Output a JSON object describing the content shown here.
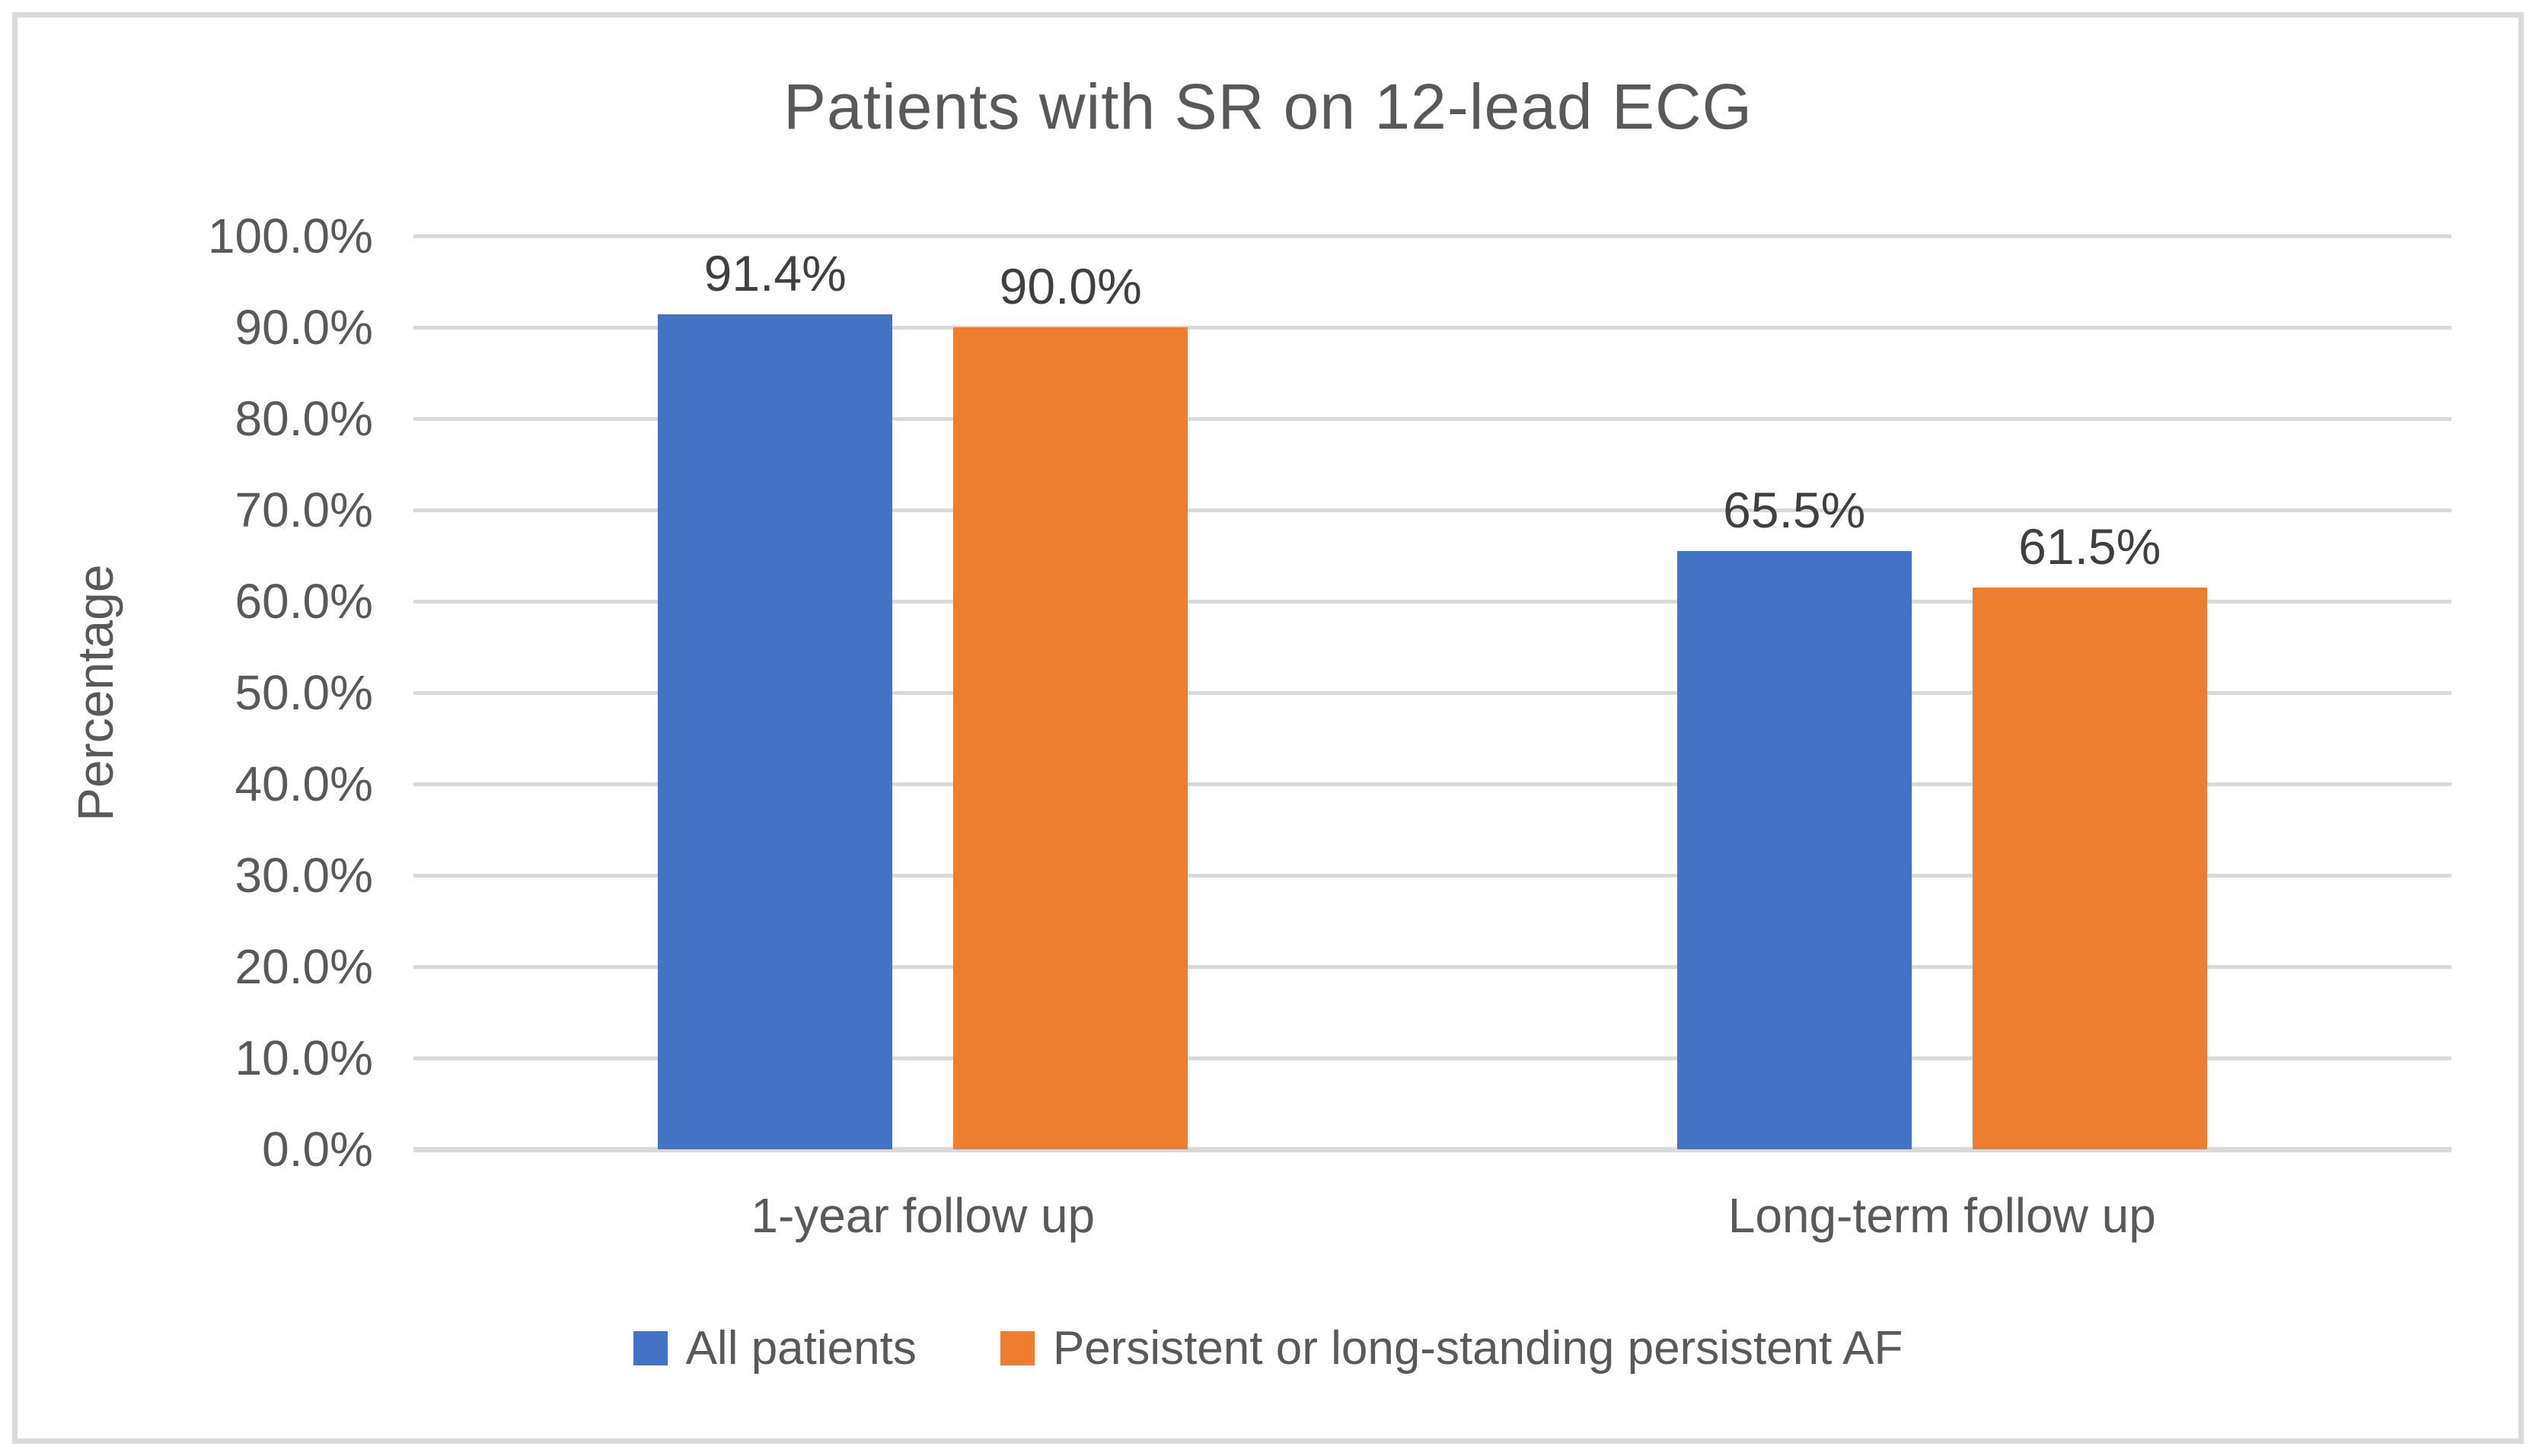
{
  "chart_data": {
    "type": "bar",
    "title": "Patients with SR on 12-lead ECG",
    "ylabel": "Percentage",
    "xlabel": "",
    "categories": [
      "1-year follow up",
      "Long-term follow up"
    ],
    "series": [
      {
        "name": "All patients",
        "color": "#4472C4",
        "values": [
          91.4,
          65.5
        ],
        "labels": [
          "91.4%",
          "65.5%"
        ]
      },
      {
        "name": "Persistent or long-standing persistent AF",
        "color": "#ED7D31",
        "values": [
          90.0,
          61.5
        ],
        "labels": [
          "90.0%",
          "61.5%"
        ]
      }
    ],
    "ylim": [
      0,
      100
    ],
    "yticks": [
      {
        "label": "0.0%",
        "value": 0
      },
      {
        "label": "10.0%",
        "value": 10
      },
      {
        "label": "20.0%",
        "value": 20
      },
      {
        "label": "30.0%",
        "value": 30
      },
      {
        "label": "40.0%",
        "value": 40
      },
      {
        "label": "50.0%",
        "value": 50
      },
      {
        "label": "60.0%",
        "value": 60
      },
      {
        "label": "70.0%",
        "value": 70
      },
      {
        "label": "80.0%",
        "value": 80
      },
      {
        "label": "90.0%",
        "value": 90
      },
      {
        "label": "100.0%",
        "value": 100
      }
    ],
    "grid": true,
    "legend_position": "bottom"
  },
  "colors": {
    "gridline": "#d9d9d9",
    "border": "#d9d9d9",
    "axis_text": "#595959",
    "data_label_text": "#404040"
  }
}
